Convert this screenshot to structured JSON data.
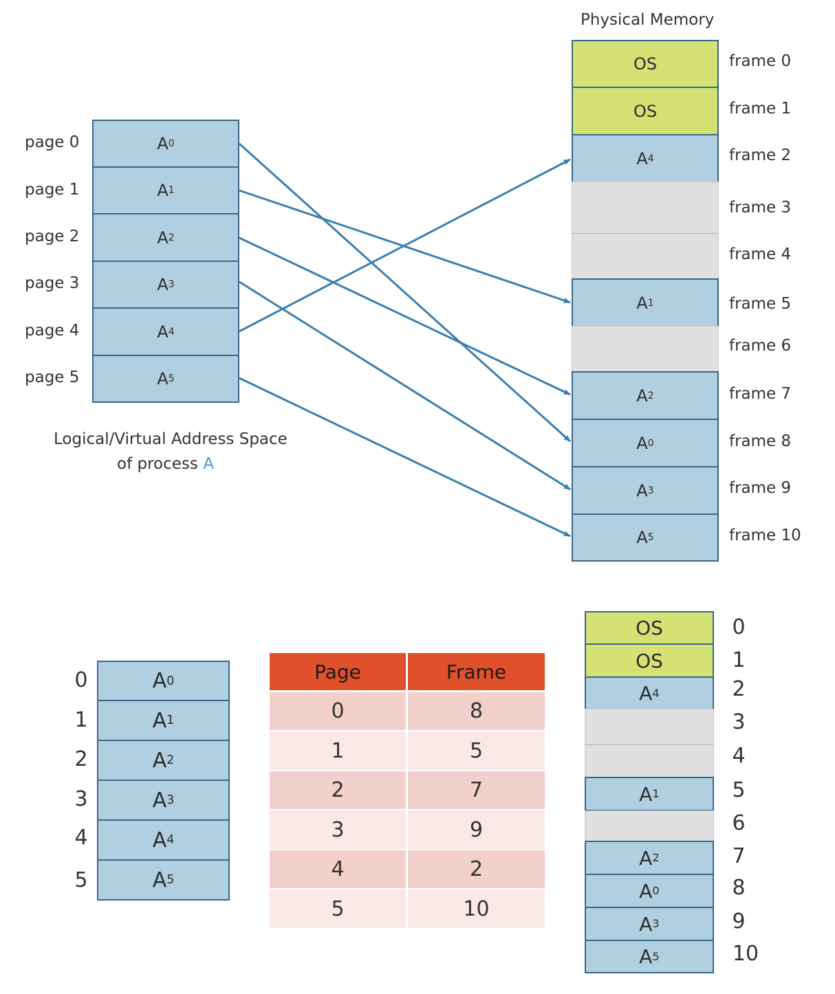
{
  "top": {
    "physical_title": "Physical Memory",
    "logical_caption_line1": "Logical/Virtual Address Space",
    "logical_caption_line2": "of process ",
    "logical_caption_process": "A",
    "pages": [
      {
        "label": "page 0",
        "base": "A",
        "sub": "0"
      },
      {
        "label": "page 1",
        "base": "A",
        "sub": "1"
      },
      {
        "label": "page 2",
        "base": "A",
        "sub": "2"
      },
      {
        "label": "page 3",
        "base": "A",
        "sub": "3"
      },
      {
        "label": "page 4",
        "base": "A",
        "sub": "4"
      },
      {
        "label": "page 5",
        "base": "A",
        "sub": "5"
      }
    ],
    "frames": [
      {
        "label": "frame 0",
        "base": "OS",
        "sub": ""
      },
      {
        "label": "frame 1",
        "base": "OS",
        "sub": ""
      },
      {
        "label": "frame 2",
        "base": "A",
        "sub": "4"
      },
      {
        "label": "frame 3",
        "base": "",
        "sub": ""
      },
      {
        "label": "frame 4",
        "base": "",
        "sub": ""
      },
      {
        "label": "frame 5",
        "base": "A",
        "sub": "1"
      },
      {
        "label": "frame 6",
        "base": "",
        "sub": ""
      },
      {
        "label": "frame 7",
        "base": "A",
        "sub": "2"
      },
      {
        "label": "frame 8",
        "base": "A",
        "sub": "0"
      },
      {
        "label": "frame 9",
        "base": "A",
        "sub": "3"
      },
      {
        "label": "frame 10",
        "base": "A",
        "sub": "5"
      }
    ]
  },
  "bottom": {
    "pages": [
      {
        "index": "0",
        "base": "A",
        "sub": "0"
      },
      {
        "index": "1",
        "base": "A",
        "sub": "1"
      },
      {
        "index": "2",
        "base": "A",
        "sub": "2"
      },
      {
        "index": "3",
        "base": "A",
        "sub": "3"
      },
      {
        "index": "4",
        "base": "A",
        "sub": "4"
      },
      {
        "index": "5",
        "base": "A",
        "sub": "5"
      }
    ],
    "table": {
      "headers": [
        "Page",
        "Frame"
      ],
      "rows": [
        [
          "0",
          "8"
        ],
        [
          "1",
          "5"
        ],
        [
          "2",
          "7"
        ],
        [
          "3",
          "9"
        ],
        [
          "4",
          "2"
        ],
        [
          "5",
          "10"
        ]
      ]
    },
    "frames": [
      {
        "index": "0",
        "base": "OS",
        "sub": ""
      },
      {
        "index": "1",
        "base": "OS",
        "sub": ""
      },
      {
        "index": "2",
        "base": "A",
        "sub": "4"
      },
      {
        "index": "3",
        "base": "",
        "sub": ""
      },
      {
        "index": "4",
        "base": "",
        "sub": ""
      },
      {
        "index": "5",
        "base": "A",
        "sub": "1"
      },
      {
        "index": "6",
        "base": "",
        "sub": ""
      },
      {
        "index": "7",
        "base": "A",
        "sub": "2"
      },
      {
        "index": "8",
        "base": "A",
        "sub": "0"
      },
      {
        "index": "9",
        "base": "A",
        "sub": "3"
      },
      {
        "index": "10",
        "base": "A",
        "sub": "5"
      }
    ]
  },
  "colors": {
    "page_blue": "#b0d0e2",
    "os_green": "#d4e274",
    "free_gray": "#e0e0e0",
    "arrow": "#3a7fb0",
    "table_header": "#e0502a",
    "table_row_dark": "#f2d0cc",
    "table_row_light": "#f9e8e6",
    "process_highlight": "#4a9bc4"
  }
}
